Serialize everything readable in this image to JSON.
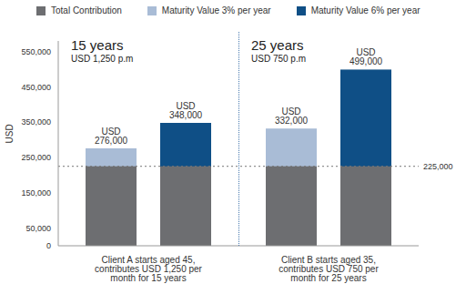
{
  "chart_data": {
    "type": "bar",
    "y_label": "USD",
    "categories": [
      "Client A starts aged 45, contributes USD 1,250 per month for 15 years",
      "Client B starts aged 35, contributes USD 750 per month for 25 years"
    ],
    "series": [
      {
        "name": "Total Contribution",
        "color": "#6d6e71",
        "values": [
          225000,
          225000
        ]
      },
      {
        "name": "Maturity Value 3% per year",
        "color": "#a9bcd6",
        "values": [
          276000,
          332000
        ],
        "value_labels": [
          "USD 276,000",
          "USD 332,000"
        ]
      },
      {
        "name": "Maturity Value 6% per year",
        "color": "#0f4f86",
        "values": [
          348000,
          499000
        ],
        "value_labels": [
          "USD 348,000",
          "USD 499,000"
        ]
      }
    ],
    "ylim": [
      0,
      580000
    ],
    "yticks": [
      0,
      {
        "value": 50000,
        "label": "50,000"
      },
      {
        "value": 150000,
        "label": "150,000"
      },
      {
        "value": 250000,
        "label": "250,000"
      },
      {
        "value": 350000,
        "label": "350,000"
      },
      {
        "value": 450000,
        "label": "450,000"
      },
      {
        "value": 550000,
        "label": "550,000"
      }
    ],
    "grid": false,
    "legend": "top",
    "data_labels": true,
    "group_headers": [
      {
        "title": "15 years",
        "subtitle": "USD 1,250 p.m"
      },
      {
        "title": "25 years",
        "subtitle": "USD 750 p.m"
      }
    ],
    "reference_line": {
      "value": 225000,
      "label": "225,000"
    }
  }
}
